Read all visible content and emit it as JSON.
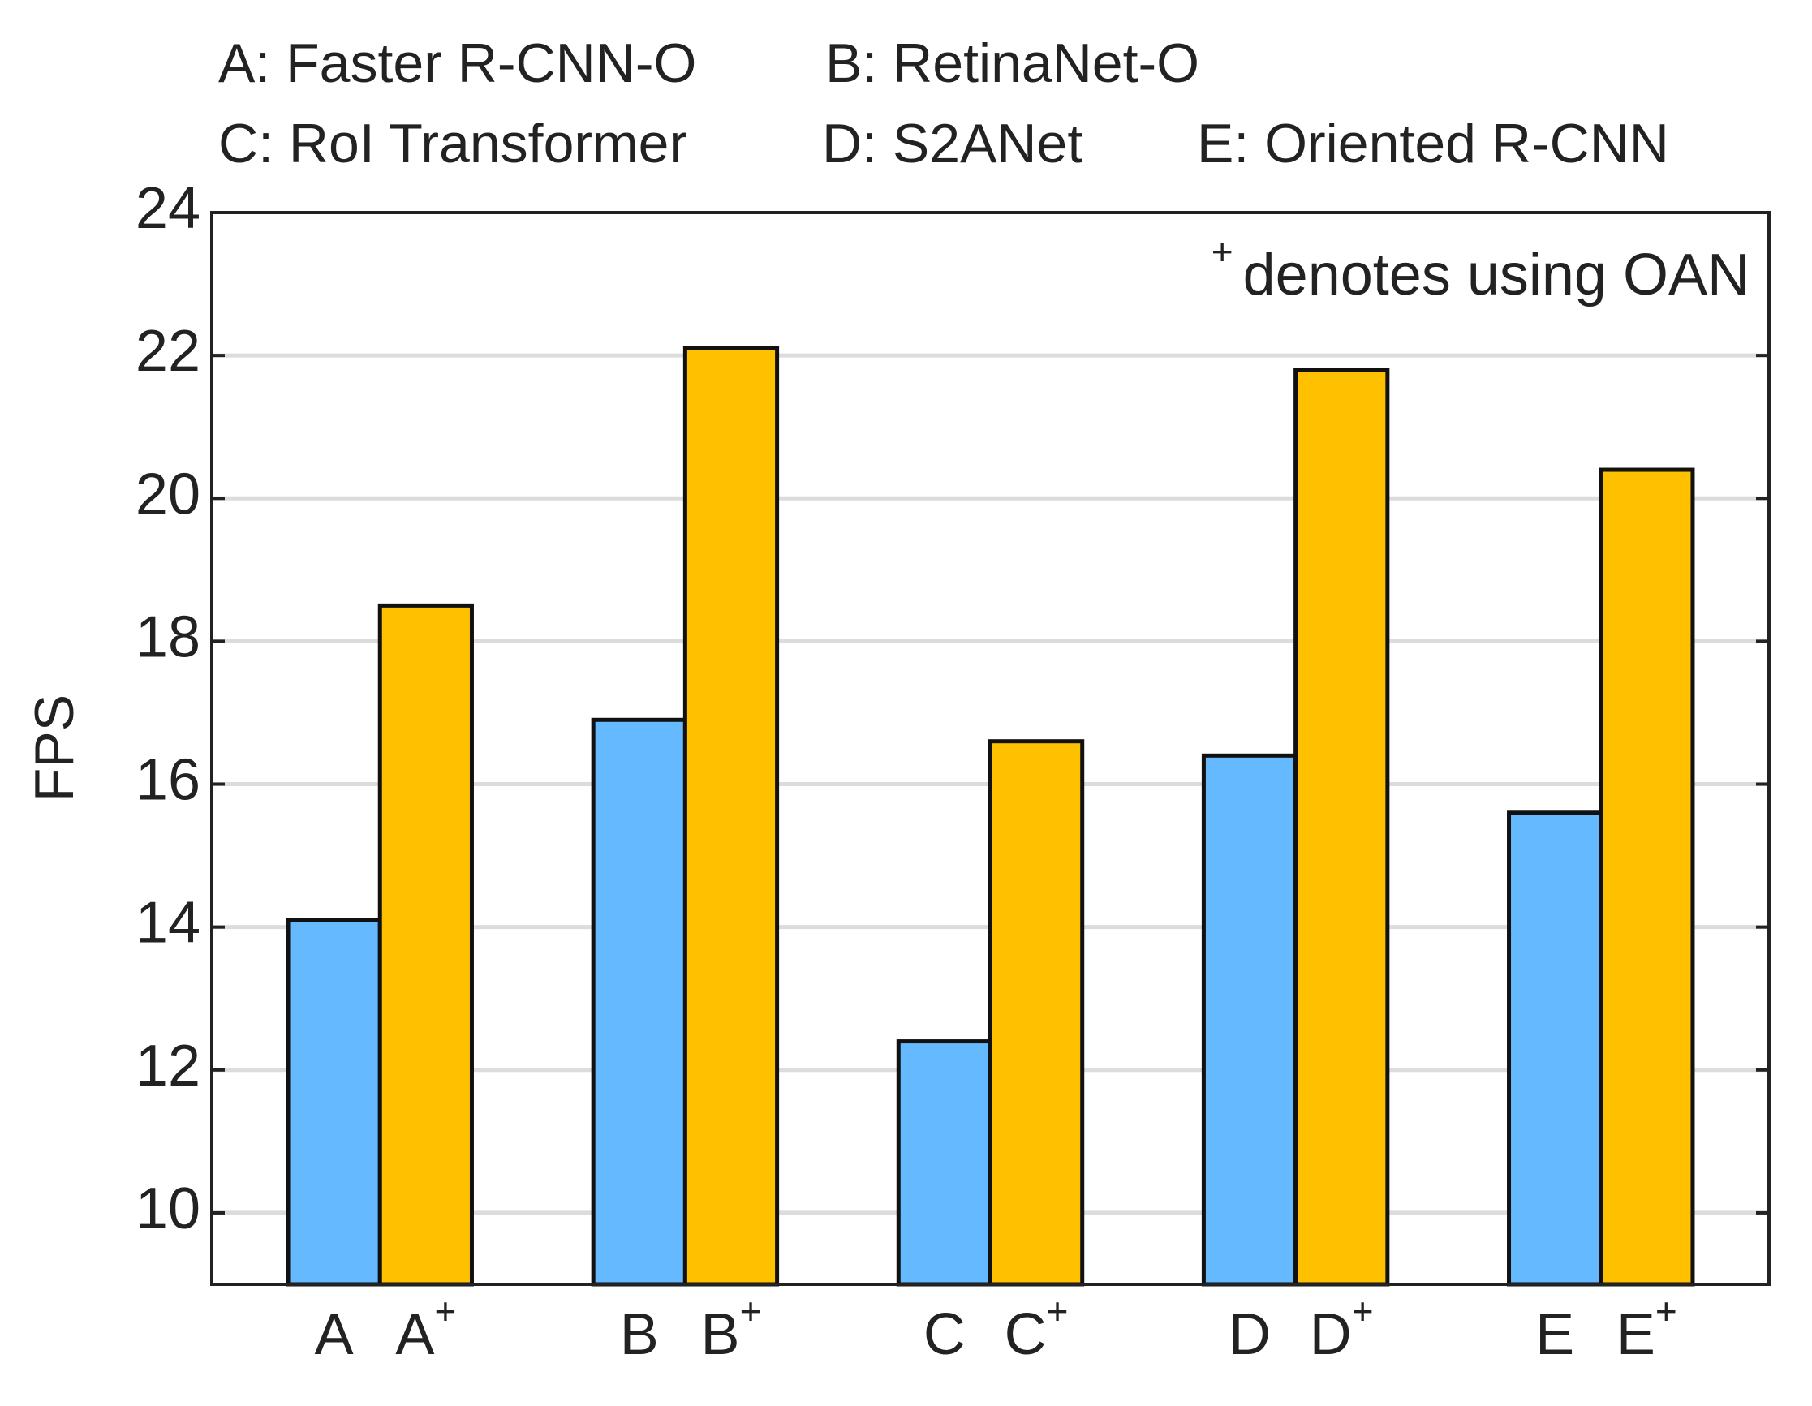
{
  "chart_data": {
    "type": "bar",
    "notes": [
      "A: Faster R-CNN-O",
      "B: RetinaNet-O",
      "C: RoI Transformer",
      "D: S2ANet",
      "E: Oriented R-CNN"
    ],
    "annotation": {
      "mark": "+",
      "text": "denotes using OAN"
    },
    "ylabel": "FPS",
    "categories": [
      "A",
      "B",
      "C",
      "D",
      "E"
    ],
    "series": [
      {
        "color": "#64b9ff",
        "values": [
          14.1,
          16.9,
          12.4,
          16.4,
          15.6
        ]
      },
      {
        "color": "#ffc000",
        "suffix": "+",
        "values": [
          18.5,
          22.1,
          16.6,
          21.8,
          20.4
        ]
      }
    ],
    "ylim": [
      9,
      24
    ],
    "yticks": [
      10,
      12,
      14,
      16,
      18,
      20,
      22,
      24
    ],
    "grid": true
  }
}
